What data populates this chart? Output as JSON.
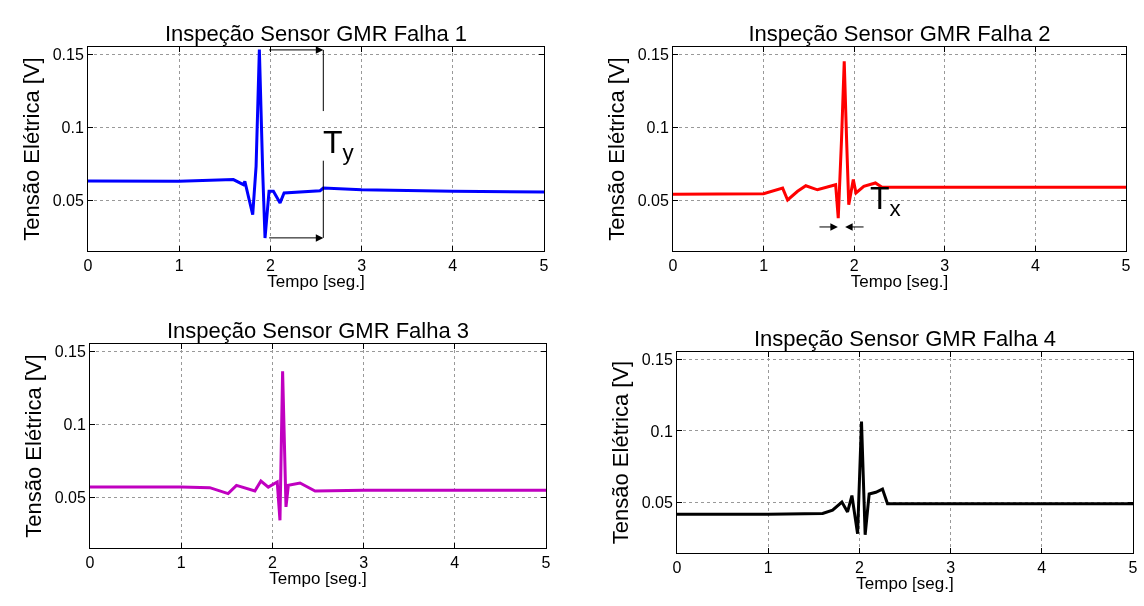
{
  "chart_data": [
    {
      "type": "line",
      "title": "Inspeção Sensor GMR Falha 1",
      "xlabel": "Tempo [seg.]",
      "ylabel": "Tensão Elétrica [V]",
      "xlim": [
        0,
        5
      ],
      "ylim": [
        0.015,
        0.155
      ],
      "xticks": [
        0,
        1,
        2,
        3,
        4,
        5
      ],
      "yticks": [
        0.05,
        0.1,
        0.15
      ],
      "grid": true,
      "marker": "none",
      "line_style": "solid",
      "series": [
        {
          "color": "#0000ff",
          "x": [
            0,
            1,
            1.594,
            1.704,
            1.72,
            1.806,
            1.843,
            1.879,
            1.916,
            1.941,
            1.985,
            2.033,
            2.106,
            2.15,
            2.545,
            2.58,
            3,
            4,
            5
          ],
          "values": [
            0.063,
            0.0628,
            0.064,
            0.0605,
            0.0628,
            0.0399,
            0.0731,
            0.1532,
            0.0685,
            0.0239,
            0.056,
            0.056,
            0.048,
            0.0548,
            0.0564,
            0.0582,
            0.057,
            0.056,
            0.0555
          ]
        }
      ],
      "annotations": [
        "T$_{y}$"
      ]
    },
    {
      "type": "line",
      "title": "Inspeção Sensor GMR Falha 2",
      "xlabel": "Tempo [seg.]",
      "ylabel": "Tensão Elétrica [V]",
      "xlim": [
        0,
        5
      ],
      "ylim": [
        0.015,
        0.155
      ],
      "xticks": [
        0,
        1,
        2,
        3,
        4,
        5
      ],
      "yticks": [
        0.05,
        0.1,
        0.15
      ],
      "grid": true,
      "marker": "none",
      "line_style": "solid",
      "series": [
        {
          "color": "#ff0000",
          "x": [
            0,
            1,
            1.21,
            1.265,
            1.375,
            1.466,
            1.594,
            1.795,
            1.824,
            1.86,
            1.89,
            1.916,
            1.94,
            1.99,
            2.02,
            2.106,
            2.234,
            2.307,
            5
          ],
          "values": [
            0.054,
            0.0543,
            0.0582,
            0.05,
            0.056,
            0.0598,
            0.057,
            0.0605,
            0.0376,
            0.0914,
            0.1452,
            0.0914,
            0.0468,
            0.064,
            0.0548,
            0.0594,
            0.0617,
            0.0587,
            0.0587
          ]
        }
      ],
      "annotations": [
        "T$_{x}$"
      ]
    },
    {
      "type": "line",
      "title": "Inspeção Sensor GMR Falha 3",
      "xlabel": "Tempo [seg.]",
      "ylabel": "Tensão Elétrica [V]",
      "xlim": [
        0,
        5
      ],
      "ylim": [
        0.015,
        0.155
      ],
      "xticks": [
        0,
        1,
        2,
        3,
        4,
        5
      ],
      "yticks": [
        0.05,
        0.1,
        0.15
      ],
      "grid": true,
      "marker": "none",
      "line_style": "solid",
      "series": [
        {
          "color": "#c000c0",
          "x": [
            0,
            1,
            1.313,
            1.514,
            1.606,
            1.808,
            1.874,
            1.955,
            2.053,
            2.083,
            2.112,
            2.149,
            2.175,
            2.303,
            2.468,
            3,
            5
          ],
          "values": [
            0.0568,
            0.0568,
            0.0564,
            0.0523,
            0.058,
            0.0541,
            0.061,
            0.0568,
            0.0603,
            0.034,
            0.1363,
            0.0432,
            0.058,
            0.0596,
            0.0541,
            0.0546,
            0.0546
          ]
        }
      ]
    },
    {
      "type": "line",
      "title": "Inspeção Sensor GMR Falha 4",
      "xlabel": "Tempo [seg.]",
      "ylabel": "Tensão Elétrica [V]",
      "xlim": [
        0,
        5
      ],
      "ylim": [
        0.015,
        0.155
      ],
      "xticks": [
        0,
        1,
        2,
        3,
        4,
        5
      ],
      "yticks": [
        0.05,
        0.1,
        0.15
      ],
      "grid": true,
      "marker": "none",
      "line_style": "solid",
      "series": [
        {
          "color": "#000000",
          "x": [
            0,
            1,
            1.597,
            1.706,
            1.808,
            1.87,
            1.918,
            1.98,
            2.023,
            2.063,
            2.107,
            2.18,
            2.253,
            2.308,
            3,
            5
          ],
          "values": [
            0.042,
            0.042,
            0.0425,
            0.0448,
            0.0505,
            0.0436,
            0.055,
            0.0284,
            0.1066,
            0.0277,
            0.0561,
            0.0573,
            0.0595,
            0.0493,
            0.0493,
            0.0493
          ]
        }
      ]
    }
  ]
}
